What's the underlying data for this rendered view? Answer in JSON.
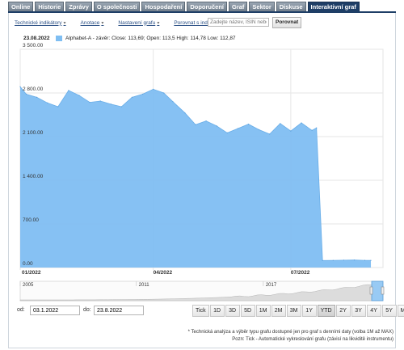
{
  "tabs": [
    {
      "label": "Online",
      "active": false
    },
    {
      "label": "Historie",
      "active": false
    },
    {
      "label": "Zprávy",
      "active": false
    },
    {
      "label": "O společnosti",
      "active": false
    },
    {
      "label": "Hospodaření",
      "active": false
    },
    {
      "label": "Doporučení",
      "active": false
    },
    {
      "label": "Graf",
      "active": false
    },
    {
      "label": "Sektor",
      "active": false
    },
    {
      "label": "Diskuse",
      "active": false
    },
    {
      "label": "Interaktivní graf",
      "active": true
    }
  ],
  "toolbar": {
    "indicators": "Technické indikátory",
    "annotation": "Anotace",
    "settings": "Nastavení grafu",
    "compare_index": "Porovnat s indexem",
    "search_placeholder": "Zadejte název, ISIN nebo symbol",
    "compare_button": "Porovnat"
  },
  "chart_header": {
    "date": "23.08.2022",
    "legend": "Alphabet-A - závěr: Close: 113,69; Open: 113,5 High: 114,78 Low: 112,87",
    "series_color": "#7fbef2"
  },
  "chart_data": {
    "type": "area",
    "series": [
      {
        "name": "Alphabet-A",
        "x": [
          "2022-01-03",
          "2022-01-07",
          "2022-01-14",
          "2022-01-21",
          "2022-01-28",
          "2022-02-04",
          "2022-02-11",
          "2022-02-18",
          "2022-02-25",
          "2022-03-04",
          "2022-03-11",
          "2022-03-18",
          "2022-03-25",
          "2022-04-01",
          "2022-04-08",
          "2022-04-14",
          "2022-04-22",
          "2022-04-29",
          "2022-05-06",
          "2022-05-13",
          "2022-05-20",
          "2022-05-27",
          "2022-06-03",
          "2022-06-10",
          "2022-06-17",
          "2022-06-24",
          "2022-07-01",
          "2022-07-08",
          "2022-07-15",
          "2022-07-18",
          "2022-07-22",
          "2022-07-29",
          "2022-08-05",
          "2022-08-12",
          "2022-08-19",
          "2022-08-23"
        ],
        "y": [
          2900,
          2780,
          2730,
          2640,
          2580,
          2840,
          2760,
          2650,
          2670,
          2620,
          2580,
          2730,
          2780,
          2860,
          2800,
          2660,
          2480,
          2290,
          2350,
          2270,
          2160,
          2230,
          2300,
          2210,
          2140,
          2310,
          2190,
          2320,
          2200,
          2240,
          113,
          114,
          118,
          121,
          116,
          113.69
        ]
      }
    ],
    "ylim": [
      0,
      3500
    ],
    "yticks": [
      "3 500.00",
      "2 800.00",
      "2 100.00",
      "1 400.00",
      "700.00",
      "0.00"
    ],
    "xticks": [
      "01/2022",
      "04/2022",
      "07/2022"
    ],
    "grid": true
  },
  "navigator": {
    "labels": [
      "2005",
      "2011",
      "2017"
    ]
  },
  "range": {
    "from_label": "od:",
    "from_value": "03.1.2022",
    "to_label": "do:",
    "to_value": "23.8.2022"
  },
  "zoom_buttons": [
    {
      "label": "Tick",
      "active": false
    },
    {
      "label": "1D",
      "active": false
    },
    {
      "label": "3D",
      "active": false
    },
    {
      "label": "5D",
      "active": false
    },
    {
      "label": "1M",
      "active": false
    },
    {
      "label": "2M",
      "active": false
    },
    {
      "label": "3M",
      "active": false
    },
    {
      "label": "1Y",
      "active": false
    },
    {
      "label": "YTD",
      "active": true
    },
    {
      "label": "2Y",
      "active": false
    },
    {
      "label": "3Y",
      "active": false
    },
    {
      "label": "4Y",
      "active": false
    },
    {
      "label": "5Y",
      "active": false
    },
    {
      "label": "Max",
      "active": false
    }
  ],
  "notes": {
    "line1": "* Technická analýza a výběr typu grafu dostupné jen pro graf s denními daty (volba 1M až MAX)",
    "line2": "Pozn: Tick - Automatické vykreslování grafu (závisí na likviditě instrumentu)"
  }
}
